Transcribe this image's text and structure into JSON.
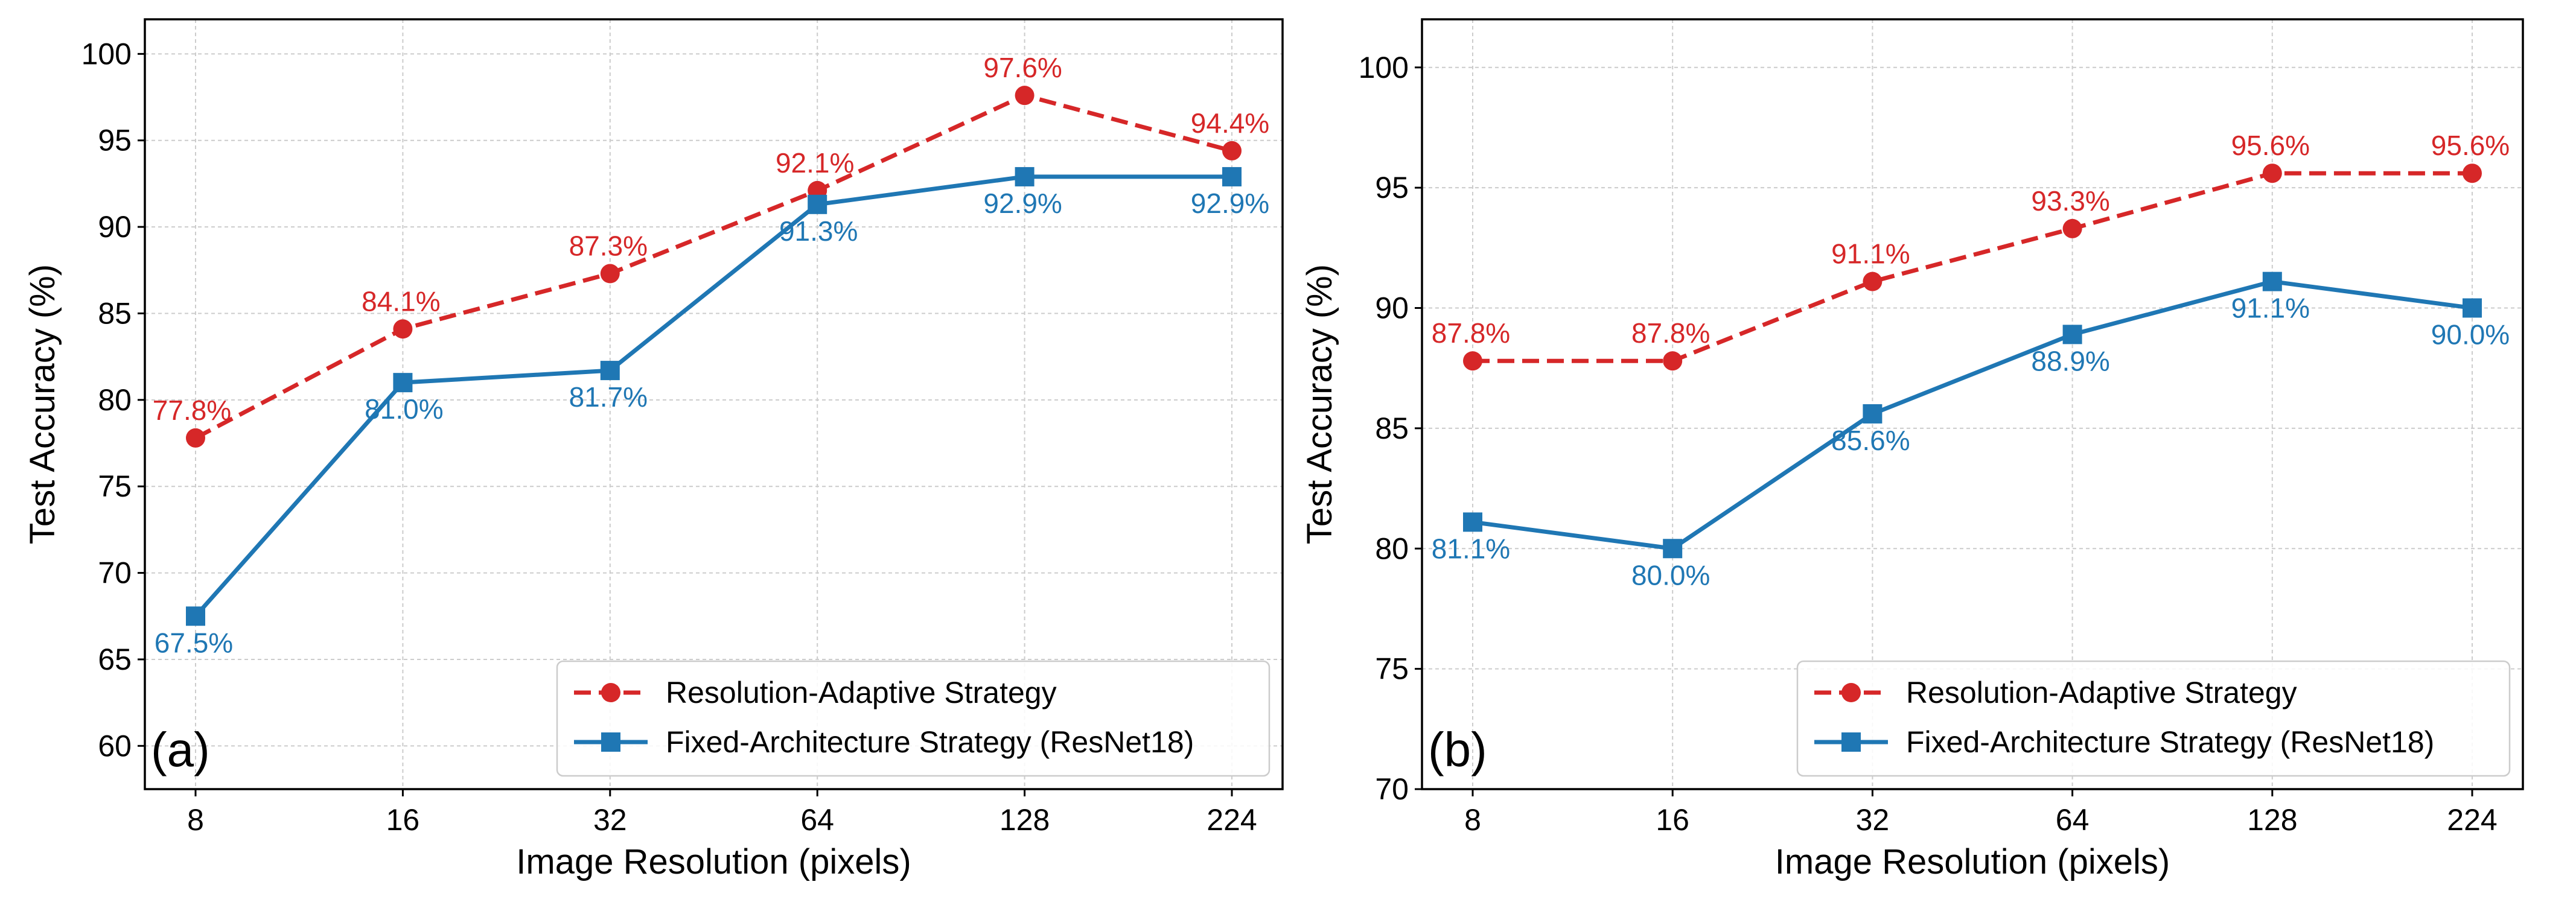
{
  "colors": {
    "adaptive": "#d62728",
    "fixed": "#1f77b4",
    "grid": "#cccccc"
  },
  "chart_data": [
    {
      "type": "line",
      "panel_label": "(a)",
      "xlabel": "Image Resolution (pixels)",
      "ylabel": "Test Accuracy (%)",
      "categories": [
        "8",
        "16",
        "32",
        "64",
        "128",
        "224"
      ],
      "ylim": [
        57.5,
        102
      ],
      "yticks": [
        60,
        65,
        70,
        75,
        80,
        85,
        90,
        95,
        100
      ],
      "grid": true,
      "legend_position": "bottom-right",
      "series": [
        {
          "name": "Resolution-Adaptive Strategy",
          "style": "dashed",
          "marker": "circle",
          "values": [
            77.8,
            84.1,
            87.3,
            92.1,
            97.6,
            94.4
          ],
          "labels": [
            "77.8%",
            "84.1%",
            "87.3%",
            "92.1%",
            "97.6%",
            "94.4%"
          ]
        },
        {
          "name": "Fixed-Architecture Strategy (ResNet18)",
          "style": "solid",
          "marker": "square",
          "values": [
            67.5,
            81.0,
            81.7,
            91.3,
            92.9,
            92.9
          ],
          "labels": [
            "67.5%",
            "81.0%",
            "81.7%",
            "91.3%",
            "92.9%",
            "92.9%"
          ]
        }
      ]
    },
    {
      "type": "line",
      "panel_label": "(b)",
      "xlabel": "Image Resolution (pixels)",
      "ylabel": "Test Accuracy (%)",
      "categories": [
        "8",
        "16",
        "32",
        "64",
        "128",
        "224"
      ],
      "ylim": [
        70,
        102
      ],
      "yticks": [
        70,
        75,
        80,
        85,
        90,
        95,
        100
      ],
      "grid": true,
      "legend_position": "bottom-right",
      "series": [
        {
          "name": "Resolution-Adaptive Strategy",
          "style": "dashed",
          "marker": "circle",
          "values": [
            87.8,
            87.8,
            91.1,
            93.3,
            95.6,
            95.6
          ],
          "labels": [
            "87.8%",
            "87.8%",
            "91.1%",
            "93.3%",
            "95.6%",
            "95.6%"
          ]
        },
        {
          "name": "Fixed-Architecture Strategy (ResNet18)",
          "style": "solid",
          "marker": "square",
          "values": [
            81.1,
            80.0,
            85.6,
            88.9,
            91.1,
            90.0
          ],
          "labels": [
            "81.1%",
            "80.0%",
            "85.6%",
            "88.9%",
            "91.1%",
            "90.0%"
          ]
        }
      ]
    }
  ]
}
